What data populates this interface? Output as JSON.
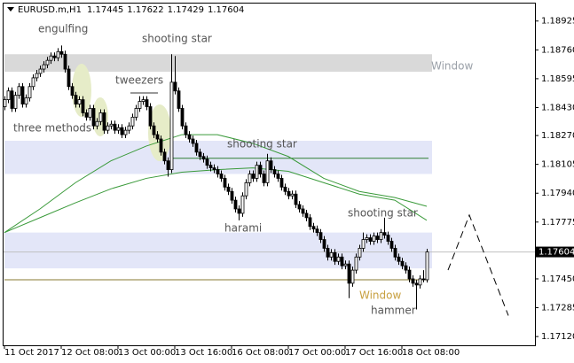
{
  "chart_data": {
    "type": "candlestick",
    "title": "EURUSD.m,H1",
    "ylim": [
      1.1707,
      1.19025
    ],
    "yticks": [
      1.18925,
      {
        "value": 1.1876,
        "label": "1.18760"
      },
      1.18595,
      {
        "value": 1.1843,
        "label": "1.18430"
      },
      {
        "value": 1.1827,
        "label": "1.18270"
      },
      1.18105,
      {
        "value": 1.1794,
        "label": "1.17940"
      },
      1.17775,
      {
        "value": 1.1745,
        "label": "1.17450"
      },
      1.17285,
      {
        "value": 1.1712,
        "label": "1.17120"
      }
    ],
    "xticks": [
      {
        "value": 0,
        "label": "11 Oct 2017"
      },
      {
        "value": 16,
        "label": "12 Oct 08:00"
      },
      {
        "value": 32,
        "label": "13 Oct 00:00"
      },
      {
        "value": 48,
        "label": "13 Oct 16:00"
      },
      {
        "value": 64,
        "label": "16 Oct 08:00"
      },
      {
        "value": 80,
        "label": "17 Oct 00:00"
      },
      {
        "value": 96,
        "label": "17 Oct 16:00"
      },
      {
        "value": 112,
        "label": "18 Oct 08:00"
      }
    ],
    "current_price": 1.17604,
    "candles": [
      [
        1.18435,
        1.18495,
        1.18415,
        1.18475
      ],
      [
        1.18475,
        1.18545,
        1.18455,
        1.18525
      ],
      [
        1.18525,
        1.18545,
        1.18405,
        1.18425
      ],
      [
        1.18425,
        1.1852,
        1.18405,
        1.185
      ],
      [
        1.185,
        1.1857,
        1.1848,
        1.1855
      ],
      [
        1.1855,
        1.1857,
        1.1843,
        1.1845
      ],
      [
        1.1845,
        1.18505,
        1.1843,
        1.18485
      ],
      [
        1.18485,
        1.1857,
        1.18465,
        1.1855
      ],
      [
        1.1855,
        1.1862,
        1.1853,
        1.186
      ],
      [
        1.186,
        1.18645,
        1.1858,
        1.18625
      ],
      [
        1.18625,
        1.1867,
        1.18605,
        1.1865
      ],
      [
        1.1865,
        1.18695,
        1.1863,
        1.18675
      ],
      [
        1.18675,
        1.1872,
        1.18655,
        1.187
      ],
      [
        1.187,
        1.18745,
        1.1868,
        1.18725
      ],
      [
        1.18725,
        1.18745,
        1.18695,
        1.18715
      ],
      [
        1.18715,
        1.1877,
        1.18695,
        1.1875
      ],
      [
        1.1875,
        1.18785,
        1.18715,
        1.18735
      ],
      [
        1.18735,
        1.18755,
        1.1863,
        1.1865
      ],
      [
        1.1865,
        1.1867,
        1.1853,
        1.1855
      ],
      [
        1.1855,
        1.1857,
        1.1848,
        1.185
      ],
      [
        1.185,
        1.1852,
        1.1843,
        1.1845
      ],
      [
        1.1845,
        1.18495,
        1.1843,
        1.18475
      ],
      [
        1.18475,
        1.18495,
        1.1838,
        1.184
      ],
      [
        1.184,
        1.1842,
        1.18355,
        1.18375
      ],
      [
        1.18375,
        1.18445,
        1.18355,
        1.18425
      ],
      [
        1.18425,
        1.18445,
        1.18305,
        1.18325
      ],
      [
        1.18325,
        1.1837,
        1.18305,
        1.1835
      ],
      [
        1.1835,
        1.1842,
        1.1833,
        1.184
      ],
      [
        1.184,
        1.1842,
        1.1828,
        1.183
      ],
      [
        1.183,
        1.18345,
        1.1828,
        1.18325
      ],
      [
        1.18325,
        1.18355,
        1.18305,
        1.18335
      ],
      [
        1.18335,
        1.18355,
        1.1828,
        1.183
      ],
      [
        1.183,
        1.18335,
        1.1828,
        1.18315
      ],
      [
        1.18315,
        1.18335,
        1.18255,
        1.18275
      ],
      [
        1.18275,
        1.1832,
        1.18255,
        1.183
      ],
      [
        1.183,
        1.18345,
        1.1828,
        1.18325
      ],
      [
        1.18325,
        1.18395,
        1.18305,
        1.18375
      ],
      [
        1.18375,
        1.18445,
        1.18355,
        1.18425
      ],
      [
        1.18425,
        1.18495,
        1.18405,
        1.18465
      ],
      [
        1.18465,
        1.18495,
        1.18445,
        1.18475
      ],
      [
        1.18475,
        1.18495,
        1.18415,
        1.18435
      ],
      [
        1.18435,
        1.18455,
        1.18305,
        1.18325
      ],
      [
        1.18325,
        1.18345,
        1.18255,
        1.18275
      ],
      [
        1.18275,
        1.18295,
        1.1823,
        1.1825
      ],
      [
        1.1825,
        1.1827,
        1.18155,
        1.18175
      ],
      [
        1.18175,
        1.18195,
        1.18105,
        1.18125
      ],
      [
        1.18125,
        1.18145,
        1.18035,
        1.18075
      ],
      [
        1.18075,
        1.18735,
        1.18055,
        1.18575
      ],
      [
        1.18575,
        1.18725,
        1.18505,
        1.18525
      ],
      [
        1.18525,
        1.18545,
        1.18405,
        1.18425
      ],
      [
        1.18425,
        1.18445,
        1.18305,
        1.18325
      ],
      [
        1.18325,
        1.18345,
        1.18255,
        1.18275
      ],
      [
        1.18275,
        1.18295,
        1.1823,
        1.1825
      ],
      [
        1.1825,
        1.1827,
        1.18205,
        1.18225
      ],
      [
        1.18225,
        1.18245,
        1.18155,
        1.18175
      ],
      [
        1.18175,
        1.18195,
        1.1813,
        1.1815
      ],
      [
        1.1815,
        1.1817,
        1.18115,
        1.18135
      ],
      [
        1.18135,
        1.18155,
        1.1808,
        1.181
      ],
      [
        1.181,
        1.1812,
        1.18065,
        1.18085
      ],
      [
        1.18085,
        1.18105,
        1.18055,
        1.18075
      ],
      [
        1.18075,
        1.18095,
        1.1803,
        1.1805
      ],
      [
        1.1805,
        1.1807,
        1.18005,
        1.18025
      ],
      [
        1.18025,
        1.18045,
        1.17955,
        1.17975
      ],
      [
        1.17975,
        1.17995,
        1.1793,
        1.1795
      ],
      [
        1.1795,
        1.1797,
        1.1788,
        1.179
      ],
      [
        1.179,
        1.1792,
        1.1783,
        1.1785
      ],
      [
        1.1785,
        1.1787,
        1.17785,
        1.17825
      ],
      [
        1.17825,
        1.17945,
        1.17805,
        1.17925
      ],
      [
        1.17925,
        1.1802,
        1.17905,
        1.18
      ],
      [
        1.18,
        1.1807,
        1.1798,
        1.1805
      ],
      [
        1.1805,
        1.1807,
        1.18005,
        1.18025
      ],
      [
        1.18025,
        1.1812,
        1.18005,
        1.181
      ],
      [
        1.181,
        1.1812,
        1.1803,
        1.1805
      ],
      [
        1.1805,
        1.1807,
        1.1798,
        1.18
      ],
      [
        1.18,
        1.18165,
        1.1798,
        1.18125
      ],
      [
        1.18125,
        1.18145,
        1.18055,
        1.18075
      ],
      [
        1.18075,
        1.18095,
        1.1803,
        1.1805
      ],
      [
        1.1805,
        1.1807,
        1.18005,
        1.18025
      ],
      [
        1.18025,
        1.18045,
        1.17955,
        1.17975
      ],
      [
        1.17975,
        1.17995,
        1.1793,
        1.1795
      ],
      [
        1.1795,
        1.1797,
        1.17905,
        1.17925
      ],
      [
        1.17925,
        1.17955,
        1.17905,
        1.17935
      ],
      [
        1.17935,
        1.17955,
        1.17855,
        1.17875
      ],
      [
        1.17875,
        1.17895,
        1.1783,
        1.1785
      ],
      [
        1.1785,
        1.1787,
        1.17805,
        1.17825
      ],
      [
        1.17825,
        1.17845,
        1.1778,
        1.178
      ],
      [
        1.178,
        1.1782,
        1.1773,
        1.1775
      ],
      [
        1.1775,
        1.1777,
        1.17715,
        1.17735
      ],
      [
        1.17735,
        1.17755,
        1.17695,
        1.17715
      ],
      [
        1.17715,
        1.17735,
        1.17655,
        1.17675
      ],
      [
        1.17675,
        1.17695,
        1.17605,
        1.17625
      ],
      [
        1.17625,
        1.17645,
        1.17555,
        1.17575
      ],
      [
        1.17575,
        1.1762,
        1.17555,
        1.176
      ],
      [
        1.176,
        1.1762,
        1.1753,
        1.1755
      ],
      [
        1.1755,
        1.17595,
        1.1753,
        1.17575
      ],
      [
        1.17575,
        1.17595,
        1.17505,
        1.17525
      ],
      [
        1.17525,
        1.17555,
        1.17505,
        1.17535
      ],
      [
        1.17535,
        1.17555,
        1.1734,
        1.17425
      ],
      [
        1.17425,
        1.1752,
        1.17405,
        1.175
      ],
      [
        1.175,
        1.17595,
        1.1748,
        1.17575
      ],
      [
        1.17575,
        1.17645,
        1.17555,
        1.17625
      ],
      [
        1.17625,
        1.17715,
        1.17605,
        1.17675
      ],
      [
        1.17675,
        1.17705,
        1.17655,
        1.17685
      ],
      [
        1.17685,
        1.17705,
        1.17645,
        1.17665
      ],
      [
        1.17665,
        1.17715,
        1.17645,
        1.17695
      ],
      [
        1.17695,
        1.17715,
        1.17655,
        1.17675
      ],
      [
        1.17675,
        1.17735,
        1.17655,
        1.17715
      ],
      [
        1.17715,
        1.178,
        1.1768,
        1.177
      ],
      [
        1.177,
        1.1772,
        1.17645,
        1.17665
      ],
      [
        1.17665,
        1.17685,
        1.17605,
        1.17625
      ],
      [
        1.17625,
        1.17645,
        1.17555,
        1.17575
      ],
      [
        1.17575,
        1.17595,
        1.1753,
        1.1755
      ],
      [
        1.1755,
        1.1757,
        1.17505,
        1.17525
      ],
      [
        1.17525,
        1.17545,
        1.1748,
        1.175
      ],
      [
        1.175,
        1.1752,
        1.1743,
        1.1745
      ],
      [
        1.1745,
        1.1747,
        1.17405,
        1.17425
      ],
      [
        1.17425,
        1.17445,
        1.17275,
        1.17415
      ],
      [
        1.17415,
        1.1747,
        1.17395,
        1.1745
      ],
      [
        1.1745,
        1.175,
        1.1743,
        1.17445
      ],
      [
        1.17445,
        1.17622,
        1.17429,
        1.17604
      ]
    ],
    "moving_averages": [
      {
        "color": "#3a9a3a",
        "x": [
          0,
          10,
          20,
          30,
          40,
          50,
          60,
          70,
          80,
          90,
          100,
          110,
          119
        ],
        "values": [
          1.17715,
          1.1785,
          1.18,
          1.18125,
          1.1821,
          1.18275,
          1.18275,
          1.18225,
          1.1815,
          1.18025,
          1.1795,
          1.17915,
          1.17865
        ]
      },
      {
        "color": "#3a9a3a",
        "x": [
          0,
          10,
          20,
          30,
          40,
          50,
          60,
          70,
          80,
          90,
          100,
          110,
          119
        ],
        "values": [
          1.17715,
          1.178,
          1.17885,
          1.17965,
          1.18025,
          1.1806,
          1.18075,
          1.18085,
          1.18065,
          1.18,
          1.17935,
          1.179,
          1.17785
        ]
      }
    ],
    "zones": [
      {
        "range": [
          1.18635,
          1.18735
        ],
        "color": "#d9d9d9",
        "label": "Window"
      },
      {
        "range": [
          1.1805,
          1.1824
        ],
        "color": "#e3e6f8"
      },
      {
        "range": [
          1.1751,
          1.17715
        ],
        "color": "#e3e6f8"
      }
    ],
    "levels": [
      {
        "value": 1.1814,
        "from": 47,
        "color": "#2e7d32"
      },
      {
        "value": 1.17445,
        "from": 0,
        "color": "#8a7a30",
        "label": "Window"
      }
    ],
    "projection": {
      "x": [
        125,
        131,
        142
      ],
      "values": [
        1.175,
        1.17815,
        1.1724
      ]
    },
    "annotations": [
      "engulfing",
      "shooting star",
      "tweezers",
      "three methods",
      "shooting star",
      "harami",
      "shooting star",
      "hammer"
    ]
  }
}
